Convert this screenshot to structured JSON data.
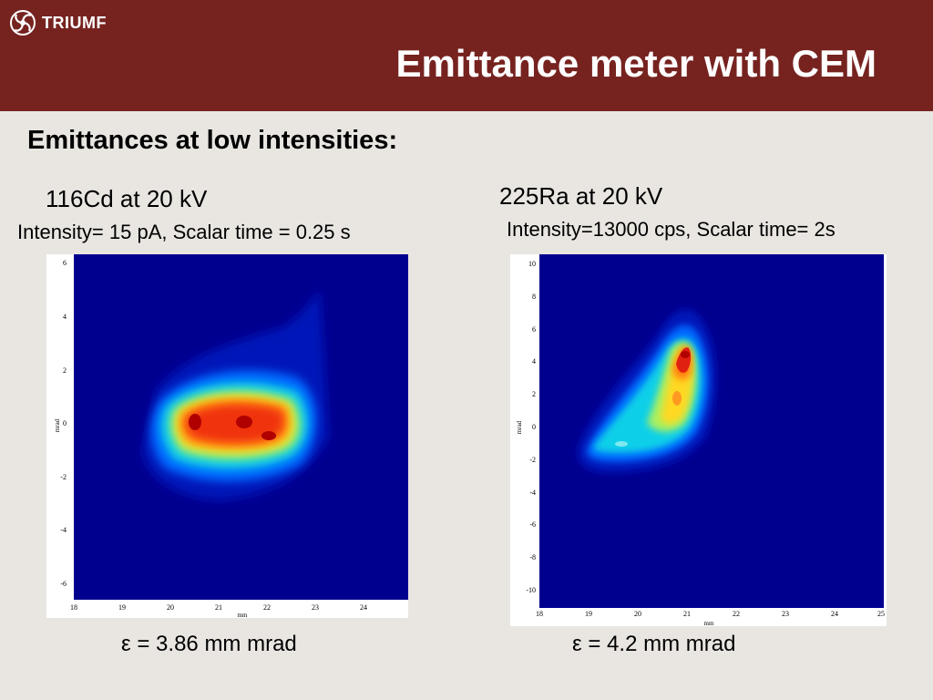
{
  "header": {
    "logo_text": "TRIUMF",
    "title": "Emittance meter with CEM"
  },
  "subtitle": "Emittances at low intensities:",
  "plots": [
    {
      "label": "116Cd at 20 kV",
      "info": "Intensity= 15 pA, Scalar time = 0.25 s",
      "epsilon": "= 3.86 mm mrad",
      "xlabel": "mm",
      "ylabel": "mrad",
      "xticks": [
        "18",
        "19",
        "20",
        "21",
        "22",
        "23",
        "24"
      ],
      "yticks": [
        "6",
        "4",
        "2",
        "0",
        "-2",
        "-4",
        "-6"
      ]
    },
    {
      "label": "225Ra at 20 kV",
      "info": "Intensity=13000 cps, Scalar time= 2s",
      "epsilon": "= 4.2 mm mrad",
      "xlabel": "mm",
      "ylabel": "mrad",
      "xticks": [
        "18",
        "19",
        "20",
        "21",
        "22",
        "23",
        "24",
        "25"
      ],
      "yticks": [
        "10",
        "8",
        "6",
        "4",
        "2",
        "0",
        "-2",
        "-4",
        "-6",
        "-8",
        "-10"
      ]
    }
  ],
  "epsilon_symbol": "ε"
}
